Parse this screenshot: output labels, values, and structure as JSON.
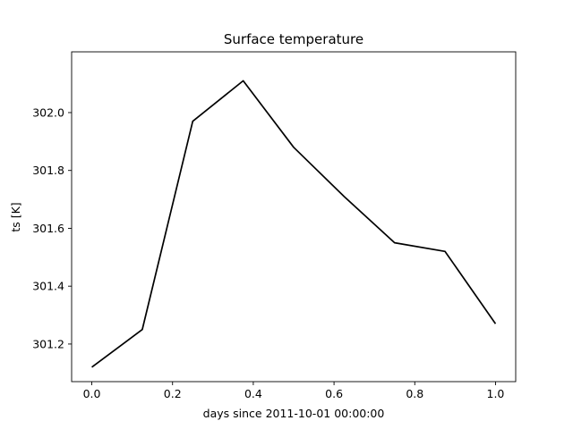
{
  "chart_data": {
    "type": "line",
    "title": "Surface temperature",
    "xlabel": "days since 2011-10-01 00:00:00",
    "ylabel": "ts [K]",
    "xlim": [
      -0.05,
      1.05
    ],
    "ylim": [
      301.07,
      302.21
    ],
    "grid": false,
    "xticks": [
      0.0,
      0.2,
      0.4,
      0.6,
      0.8,
      1.0
    ],
    "xtick_labels": [
      "0.0",
      "0.2",
      "0.4",
      "0.6",
      "0.8",
      "1.0"
    ],
    "yticks": [
      301.2,
      301.4,
      301.6,
      301.8,
      302.0
    ],
    "ytick_labels": [
      "301.2",
      "301.4",
      "301.6",
      "301.8",
      "302.0"
    ],
    "series": [
      {
        "color": "#000000",
        "x": [
          0.0,
          0.125,
          0.25,
          0.375,
          0.5,
          0.625,
          0.75,
          0.875,
          1.0
        ],
        "y": [
          301.12,
          301.25,
          301.97,
          302.11,
          301.88,
          301.71,
          301.55,
          301.52,
          301.27
        ]
      }
    ]
  }
}
